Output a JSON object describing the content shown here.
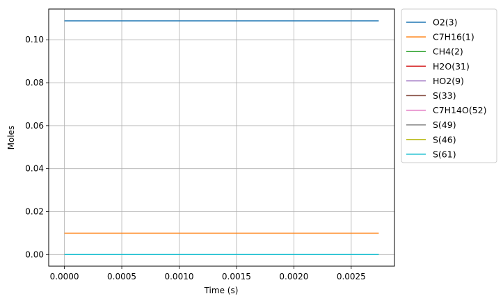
{
  "chart_data": {
    "type": "line",
    "title": "",
    "xlabel": "Time  (s)",
    "ylabel": "Moles",
    "xlim": [
      -0.000137,
      0.002877
    ],
    "ylim": [
      -0.0054,
      0.1143
    ],
    "x_ticks": [
      0.0,
      0.0005,
      0.001,
      0.0015,
      0.002,
      0.0025
    ],
    "x_tick_labels": [
      "0.0000",
      "0.0005",
      "0.0010",
      "0.0015",
      "0.0020",
      "0.0025"
    ],
    "y_ticks": [
      0.0,
      0.02,
      0.04,
      0.06,
      0.08,
      0.1
    ],
    "y_tick_labels": [
      "0.00",
      "0.02",
      "0.04",
      "0.06",
      "0.08",
      "0.10"
    ],
    "grid": true,
    "legend_position": "outside-right",
    "x": [
      0.0,
      0.00274
    ],
    "series": [
      {
        "name": "O2(3)",
        "color": "#1f77b4",
        "values": [
          0.1088,
          0.1088
        ]
      },
      {
        "name": "C7H16(1)",
        "color": "#ff7f0e",
        "values": [
          0.00995,
          0.00995
        ]
      },
      {
        "name": "CH4(2)",
        "color": "#2ca02c",
        "values": [
          0.0,
          0.0
        ]
      },
      {
        "name": "H2O(31)",
        "color": "#d62728",
        "values": [
          0.0,
          0.0
        ]
      },
      {
        "name": "HO2(9)",
        "color": "#9467bd",
        "values": [
          0.0,
          0.0
        ]
      },
      {
        "name": "S(33)",
        "color": "#8c564b",
        "values": [
          0.0,
          0.0
        ]
      },
      {
        "name": "C7H14O(52)",
        "color": "#e377c2",
        "values": [
          0.0,
          0.0
        ]
      },
      {
        "name": "S(49)",
        "color": "#7f7f7f",
        "values": [
          0.0,
          0.0
        ]
      },
      {
        "name": "S(46)",
        "color": "#bcbd22",
        "values": [
          0.0,
          0.0
        ]
      },
      {
        "name": "S(61)",
        "color": "#17becf",
        "values": [
          0.0,
          0.0
        ]
      }
    ]
  }
}
